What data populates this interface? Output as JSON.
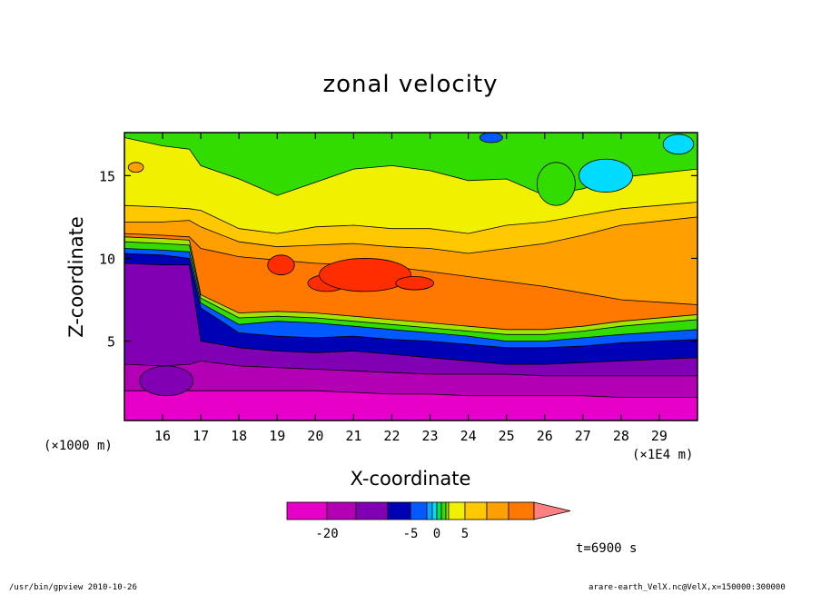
{
  "chart_data": {
    "type": "heatmap",
    "title": "zonal velocity",
    "xlabel": "X-coordinate",
    "ylabel": "Z-coordinate",
    "x_unit_label": "(×1E4 m)",
    "y_unit_label": "(×1000 m)",
    "x_ticks": [
      16,
      17,
      18,
      19,
      20,
      21,
      22,
      23,
      24,
      25,
      26,
      27,
      28,
      29
    ],
    "y_ticks": [
      5,
      10,
      15
    ],
    "xlim": [
      15.0,
      30.0
    ],
    "ylim": [
      0.2,
      17.6
    ],
    "time_label": "t=6900 s",
    "colorbar": {
      "tick_labels": [
        "-20",
        "-5",
        "0",
        "5"
      ],
      "colors": [
        "#e600c8",
        "#b400b4",
        "#8200b4",
        "#0000b4",
        "#005aff",
        "#00aaff",
        "#00dcff",
        "#00e650",
        "#32dc00",
        "#a0e600",
        "#f0f000",
        "#ffc800",
        "#ffa000",
        "#ff7800",
        "#ff2d00",
        "#ff8080"
      ]
    },
    "field_layers": [
      {
        "name": "surface-pink",
        "color": "#e600c8",
        "top_z": [
          2.0,
          2.0,
          2.0,
          2.0,
          2.0,
          2.0,
          2.0,
          1.9,
          1.8,
          1.8,
          1.7,
          1.7,
          1.7,
          1.7,
          1.6,
          1.6
        ]
      },
      {
        "name": "magenta",
        "color": "#b400b4",
        "top_z": [
          3.6,
          3.5,
          3.6,
          3.8,
          3.5,
          3.4,
          3.3,
          3.2,
          3.1,
          3.0,
          3.0,
          3.0,
          2.9,
          2.9,
          2.9,
          2.9
        ]
      },
      {
        "name": "purple",
        "color": "#8200b4",
        "top_z": [
          9.7,
          9.6,
          9.6,
          5.0,
          4.6,
          4.4,
          4.3,
          4.4,
          4.2,
          4.0,
          3.8,
          3.6,
          3.6,
          3.7,
          3.8,
          4.0
        ]
      },
      {
        "name": "dark-blue",
        "color": "#0000b4",
        "top_z": [
          10.3,
          10.2,
          10.0,
          7.0,
          5.5,
          5.3,
          5.2,
          5.3,
          5.1,
          5.0,
          4.8,
          4.6,
          4.6,
          4.7,
          4.9,
          5.1
        ]
      },
      {
        "name": "blue",
        "color": "#005aff",
        "top_z": [
          10.6,
          10.5,
          10.4,
          7.3,
          6.0,
          6.2,
          6.1,
          5.9,
          5.7,
          5.5,
          5.3,
          5.0,
          5.0,
          5.2,
          5.4,
          5.7
        ]
      },
      {
        "name": "green",
        "color": "#32dc00",
        "top_z": [
          11.0,
          10.9,
          10.8,
          7.6,
          6.4,
          6.5,
          6.4,
          6.2,
          6.0,
          5.8,
          5.6,
          5.4,
          5.4,
          5.6,
          5.9,
          6.3
        ]
      },
      {
        "name": "yellow-green",
        "color": "#a0e600",
        "top_z": [
          11.3,
          11.2,
          11.1,
          7.8,
          6.7,
          6.8,
          6.7,
          6.5,
          6.3,
          6.1,
          5.9,
          5.7,
          5.7,
          5.9,
          6.2,
          6.6
        ]
      },
      {
        "name": "orange-dark",
        "color": "#ff7800",
        "top_z": [
          11.5,
          11.4,
          11.3,
          10.6,
          10.1,
          9.9,
          9.7,
          9.6,
          9.5,
          9.2,
          8.9,
          8.6,
          8.3,
          7.9,
          7.5,
          7.2
        ]
      },
      {
        "name": "orange",
        "color": "#ffa000",
        "top_z": [
          12.2,
          12.2,
          12.3,
          11.9,
          11.0,
          10.7,
          10.8,
          10.9,
          10.7,
          10.6,
          10.3,
          10.6,
          10.9,
          11.4,
          12.0,
          12.5
        ]
      },
      {
        "name": "yellow-orange",
        "color": "#ffc800",
        "top_z": [
          13.2,
          13.1,
          13.0,
          12.9,
          11.8,
          11.5,
          11.9,
          12.0,
          11.8,
          11.8,
          11.5,
          12.0,
          12.2,
          12.6,
          13.0,
          13.4
        ]
      },
      {
        "name": "yellow",
        "color": "#f0f000",
        "top_z": [
          17.3,
          16.8,
          16.6,
          15.6,
          14.8,
          13.8,
          14.6,
          15.4,
          15.6,
          15.3,
          14.7,
          14.8,
          13.8,
          14.2,
          14.9,
          15.4
        ]
      },
      {
        "name": "upper-green",
        "color": "#32dc00",
        "top_z": [
          17.6,
          17.6,
          17.6,
          17.6,
          17.6,
          17.6,
          17.6,
          17.6,
          17.6,
          17.6,
          17.6,
          17.6,
          17.6,
          17.6,
          17.6,
          17.6
        ]
      }
    ],
    "layer_x": [
      15.0,
      16.0,
      16.7,
      17.0,
      18.0,
      19.0,
      20.0,
      21.0,
      22.0,
      23.0,
      24.0,
      25.0,
      26.0,
      27.0,
      28.0,
      30.0
    ],
    "patches": [
      {
        "name": "max-core-1",
        "color": "#ff2d00",
        "cx": 19.1,
        "cz": 9.6,
        "rx": 0.35,
        "rz": 0.6
      },
      {
        "name": "max-core-2",
        "color": "#ff2d00",
        "cx": 20.3,
        "cz": 8.5,
        "rx": 0.5,
        "rz": 0.5
      },
      {
        "name": "max-core-3",
        "color": "#ff2d00",
        "cx": 21.3,
        "cz": 9.0,
        "rx": 1.2,
        "rz": 1.0
      },
      {
        "name": "max-core-4",
        "color": "#ff2d00",
        "cx": 22.6,
        "cz": 8.5,
        "rx": 0.5,
        "rz": 0.4
      },
      {
        "name": "cyan-cell-1",
        "color": "#00dcff",
        "cx": 27.6,
        "cz": 15.0,
        "rx": 0.7,
        "rz": 1.0
      },
      {
        "name": "cyan-cell-2",
        "color": "#00dcff",
        "cx": 29.5,
        "cz": 16.9,
        "rx": 0.4,
        "rz": 0.6
      },
      {
        "name": "blue-cell-1",
        "color": "#005aff",
        "cx": 24.6,
        "cz": 17.3,
        "rx": 0.3,
        "rz": 0.3
      },
      {
        "name": "green-cell-1",
        "color": "#32dc00",
        "cx": 26.3,
        "cz": 14.5,
        "rx": 0.5,
        "rz": 1.3
      },
      {
        "name": "orange-cell-1",
        "color": "#ffa000",
        "cx": 15.3,
        "cz": 15.5,
        "rx": 0.2,
        "rz": 0.3
      },
      {
        "name": "purple-cell-1",
        "color": "#8200b4",
        "cx": 16.1,
        "cz": 2.6,
        "rx": 0.7,
        "rz": 0.9
      }
    ]
  },
  "footer": {
    "left": "/usr/bin/gpview  2010-10-26",
    "right": "arare-earth_VelX.nc@VelX,x=150000:300000"
  }
}
